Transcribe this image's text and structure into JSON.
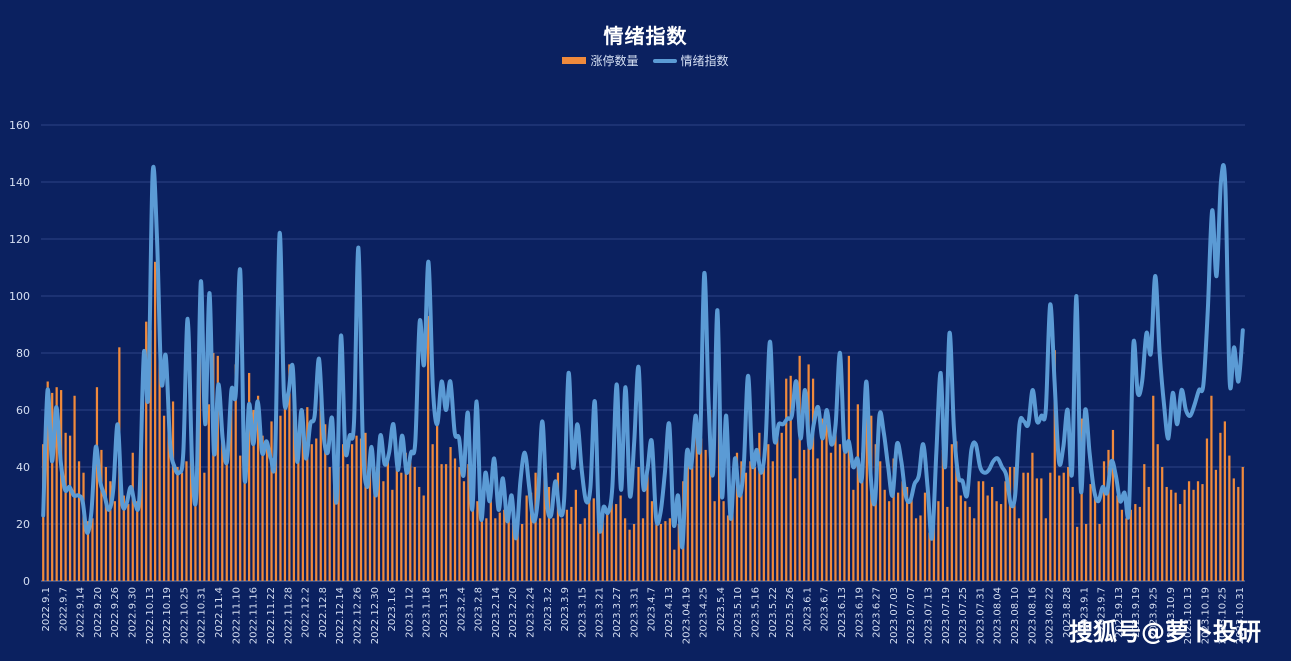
{
  "chart_data": {
    "type": "bar+line",
    "title": "情绪指数",
    "legend": [
      {
        "label": "涨停数量",
        "type": "bar",
        "color": "#f08a3c"
      },
      {
        "label": "情绪指数",
        "type": "line",
        "color": "#5b9bd5"
      }
    ],
    "ylim": [
      0,
      160
    ],
    "yticks": [
      0,
      20,
      40,
      60,
      80,
      100,
      120,
      140,
      160
    ],
    "x_tick_labels": [
      "2022.9.1",
      "2022.9.7",
      "2022.9.14",
      "2022.9.20",
      "2022.9.26",
      "2022.9.30",
      "2022.10.13",
      "2022.10.19",
      "2022.10.25",
      "2022.10.31",
      "2022.11.4",
      "2022.11.10",
      "2022.11.16",
      "2022.11.22",
      "2022.11.28",
      "2022.12.2",
      "2022.12.8",
      "2022.12.14",
      "2022.12.26",
      "2022.12.30",
      "2023.1.6",
      "2023.1.12",
      "2023.1.18",
      "2023.1.31",
      "2023.2.4",
      "2023.2.8",
      "2023.2.14",
      "2023.2.20",
      "2023.2.24",
      "2023.3.2",
      "2023.3.9",
      "2023.3.15",
      "2023.3.21",
      "2023.3.27",
      "2023.3.31",
      "2023.4.7",
      "2023.4.13",
      "2023.04.19",
      "2023.4.25",
      "2023.5.4",
      "2023.5.10",
      "2023.5.16",
      "2023.5.22",
      "2023.5.26",
      "2023.6.1",
      "2023.6.7",
      "2023.6.13",
      "2023.6.19",
      "2023.6.27",
      "2023.07.03",
      "2023.07.07",
      "2023.07.13",
      "2023.07.19",
      "2023.07.25",
      "2023.07.31",
      "2023.08.04",
      "2023.08.10",
      "2023.08.16",
      "2023.08.22",
      "2023.8.28",
      "2023.9.1",
      "2023.9.7",
      "2023.9.13",
      "2023.9.19",
      "2023.9.25",
      "2023.10.9",
      "2023.10.13",
      "2023.10.19",
      "2023.10.25",
      "2023.10.31"
    ],
    "bars": [
      48,
      70,
      66,
      68,
      67,
      52,
      51,
      65,
      42,
      38,
      21,
      22,
      68,
      46,
      40,
      35,
      28,
      82,
      30,
      27,
      45,
      28,
      56,
      91,
      88,
      112,
      97,
      58,
      57,
      63,
      40,
      38,
      42,
      56,
      27,
      90,
      38,
      62,
      80,
      79,
      55,
      42,
      67,
      76,
      44,
      40,
      73,
      60,
      65,
      51,
      48,
      56,
      48,
      58,
      63,
      76,
      73,
      42,
      60,
      61,
      48,
      50,
      65,
      55,
      40,
      38,
      40,
      48,
      41,
      48,
      51,
      50,
      52,
      44,
      40,
      41,
      35,
      42,
      32,
      40,
      38,
      45,
      42,
      40,
      33,
      30,
      93,
      48,
      56,
      41,
      41,
      47,
      43,
      40,
      35,
      41,
      28,
      28,
      22,
      22,
      28,
      22,
      24,
      25,
      26,
      22,
      18,
      20,
      30,
      31,
      38,
      22,
      36,
      33,
      22,
      38,
      22,
      25,
      26,
      32,
      20,
      22,
      28,
      29,
      22,
      24,
      25,
      32,
      27,
      30,
      22,
      18,
      20,
      40,
      22,
      39,
      28,
      24,
      20,
      21,
      22,
      11,
      20,
      35,
      42,
      41,
      58,
      50,
      46,
      60,
      28,
      62,
      28,
      23,
      25,
      45,
      42,
      38,
      42,
      40,
      52,
      40,
      48,
      42,
      51,
      52,
      71,
      72,
      36,
      79,
      46,
      76,
      71,
      43,
      57,
      55,
      45,
      53,
      48,
      46,
      79,
      32,
      62,
      45,
      60,
      58,
      48,
      42,
      32,
      28,
      43,
      31,
      35,
      33,
      30,
      22,
      23,
      31,
      17,
      30,
      28,
      46,
      26,
      48,
      49,
      30,
      28,
      26,
      22,
      35,
      35,
      30,
      33,
      28,
      27,
      35,
      40,
      40,
      22,
      38,
      38,
      45,
      36,
      36,
      22,
      38,
      81,
      37,
      38,
      40,
      33,
      19,
      57,
      20,
      34,
      30,
      20,
      42,
      46,
      53,
      30,
      25,
      22,
      25,
      27,
      26,
      41,
      33,
      65,
      48,
      40,
      33,
      32,
      31,
      27,
      32,
      35,
      32,
      35,
      34,
      50,
      65,
      39,
      52,
      56,
      44,
      36,
      33,
      40
    ],
    "line": [
      23,
      67,
      42,
      61,
      42,
      32,
      33,
      30,
      30,
      28,
      17,
      24,
      47,
      35,
      30,
      25,
      32,
      55,
      28,
      27,
      33,
      27,
      30,
      80,
      65,
      143,
      120,
      70,
      79,
      48,
      40,
      38,
      45,
      92,
      42,
      31,
      105,
      55,
      101,
      45,
      69,
      50,
      42,
      67,
      66,
      109,
      36,
      62,
      48,
      63,
      45,
      49,
      43,
      45,
      122,
      65,
      66,
      75,
      42,
      60,
      43,
      55,
      58,
      78,
      52,
      45,
      57,
      28,
      86,
      46,
      51,
      56,
      117,
      49,
      33,
      47,
      30,
      51,
      41,
      45,
      55,
      39,
      51,
      38,
      45,
      49,
      91,
      76,
      112,
      68,
      55,
      70,
      60,
      70,
      52,
      50,
      37,
      59,
      25,
      63,
      22,
      38,
      28,
      43,
      25,
      36,
      21,
      30,
      15,
      35,
      45,
      33,
      21,
      29,
      56,
      28,
      23,
      35,
      24,
      29,
      73,
      40,
      55,
      39,
      28,
      33,
      63,
      19,
      26,
      24,
      33,
      69,
      32,
      68,
      30,
      49,
      75,
      34,
      39,
      49,
      22,
      24,
      38,
      55,
      20,
      30,
      12,
      45,
      40,
      58,
      47,
      108,
      62,
      38,
      95,
      30,
      58,
      22,
      43,
      30,
      40,
      72,
      41,
      46,
      38,
      49,
      84,
      50,
      55,
      55,
      57,
      58,
      70,
      50,
      67,
      47,
      55,
      61,
      50,
      60,
      48,
      55,
      80,
      47,
      49,
      40,
      43,
      36,
      70,
      37,
      28,
      58,
      52,
      40,
      30,
      48,
      42,
      30,
      28,
      34,
      37,
      48,
      33,
      15,
      45,
      73,
      40,
      87,
      54,
      37,
      35,
      30,
      46,
      48,
      40,
      38,
      39,
      42,
      43,
      40,
      37,
      27,
      30,
      55,
      56,
      55,
      67,
      56,
      58,
      60,
      97,
      70,
      42,
      47,
      60,
      38,
      100,
      32,
      60,
      45,
      32,
      28,
      33,
      31,
      42,
      37,
      28,
      31,
      25,
      83,
      66,
      70,
      87,
      80,
      107,
      80,
      62,
      50,
      66,
      55,
      67,
      60,
      58,
      62,
      67,
      69,
      95,
      130,
      107,
      140,
      139,
      70,
      82,
      70,
      88
    ]
  },
  "watermark": "搜狐号@萝卜投研"
}
